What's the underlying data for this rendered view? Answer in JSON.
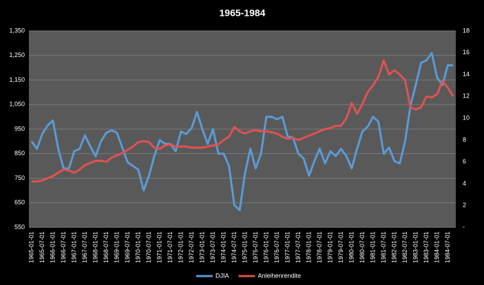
{
  "chart_data": {
    "type": "line",
    "title": "1965-1984",
    "categories": [
      "1965-01-01",
      null,
      "1965-07-01",
      null,
      "1966-01-01",
      null,
      "1966-07-01",
      null,
      "1967-01-01",
      null,
      "1967-07-01",
      null,
      "1968-01-01",
      null,
      "1968-07-01",
      null,
      "1969-01-01",
      null,
      "1969-07-01",
      null,
      "1970-01-01",
      null,
      "1970-07-01",
      null,
      "1971-01-01",
      null,
      "1971-07-01",
      null,
      "1972-01-01",
      null,
      "1972-07-01",
      null,
      "1973-01-01",
      null,
      "1973-07-01",
      null,
      "1974-01-01",
      null,
      "1974-07-01",
      null,
      "1975-01-01",
      null,
      "1975-07-01",
      null,
      "1976-01-01",
      null,
      "1976-07-01",
      null,
      "1977-01-01",
      null,
      "1977-07-01",
      null,
      "1978-01-01",
      null,
      "1978-07-01",
      null,
      "1979-01-01",
      null,
      "1979-07-01",
      null,
      "1980-01-01",
      null,
      "1980-07-01",
      null,
      "1981-01-01",
      null,
      "1981-07-01",
      null,
      "1982-01-01",
      null,
      "1982-07-01",
      null,
      "1983-01-01",
      null,
      "1983-07-01",
      null,
      "1984-01-01",
      null,
      "1984-07-01",
      null
    ],
    "series": [
      {
        "name": "DJIA",
        "color": "#5b9bd5",
        "values": [
          900,
          870,
          930,
          965,
          985,
          870,
          790,
          790,
          860,
          870,
          925,
          880,
          840,
          900,
          935,
          945,
          935,
          875,
          815,
          800,
          785,
          700,
          760,
          840,
          905,
          890,
          890,
          860,
          940,
          930,
          955,
          1020,
          950,
          890,
          950,
          850,
          850,
          800,
          640,
          620,
          770,
          870,
          790,
          850,
          1000,
          1000,
          990,
          1000,
          920,
          915,
          850,
          830,
          760,
          820,
          870,
          810,
          860,
          840,
          870,
          840,
          790,
          870,
          940,
          960,
          1000,
          980,
          850,
          875,
          820,
          810,
          900,
          1045,
          1130,
          1220,
          1230,
          1260,
          1160,
          1130,
          1210,
          1210
        ]
      },
      {
        "name": "Anleihenrendite",
        "color": "#e05252",
        "axis": "y2",
        "values": [
          4.2,
          4.2,
          4.3,
          4.5,
          4.7,
          5.0,
          5.3,
          5.2,
          5.0,
          5.3,
          5.7,
          5.9,
          6.1,
          6.1,
          6.0,
          6.4,
          6.6,
          6.8,
          7.1,
          7.4,
          7.8,
          7.9,
          7.8,
          7.3,
          7.2,
          7.5,
          7.6,
          7.4,
          7.4,
          7.4,
          7.3,
          7.3,
          7.3,
          7.4,
          7.5,
          7.6,
          8.0,
          8.3,
          9.2,
          8.8,
          8.6,
          8.8,
          8.9,
          8.8,
          8.8,
          8.7,
          8.6,
          8.3,
          8.1,
          8.2,
          8.0,
          8.2,
          8.4,
          8.6,
          8.8,
          9.0,
          9.1,
          9.3,
          9.3,
          10.0,
          11.4,
          10.4,
          11.3,
          12.4,
          13.0,
          13.8,
          15.3,
          14.0,
          14.4,
          14.0,
          13.5,
          11.0,
          10.8,
          11.0,
          12.0,
          11.9,
          12.2,
          13.4,
          12.8,
          12.0
        ]
      }
    ],
    "ylim": [
      550,
      1350
    ],
    "yticks": [
      550,
      650,
      750,
      850,
      950,
      {
        "value": 1050,
        "label": "1,050"
      },
      {
        "value": 1150,
        "label": "1,150"
      },
      {
        "value": 1250,
        "label": "1,250"
      },
      {
        "value": 1350,
        "label": "1,350"
      }
    ],
    "y2lim": [
      0,
      18
    ],
    "y2ticks": [
      {
        "value": 0,
        "label": "-"
      },
      2,
      4,
      6,
      8,
      10,
      12,
      14,
      16,
      18
    ],
    "grid": true,
    "legend": "bottom"
  }
}
